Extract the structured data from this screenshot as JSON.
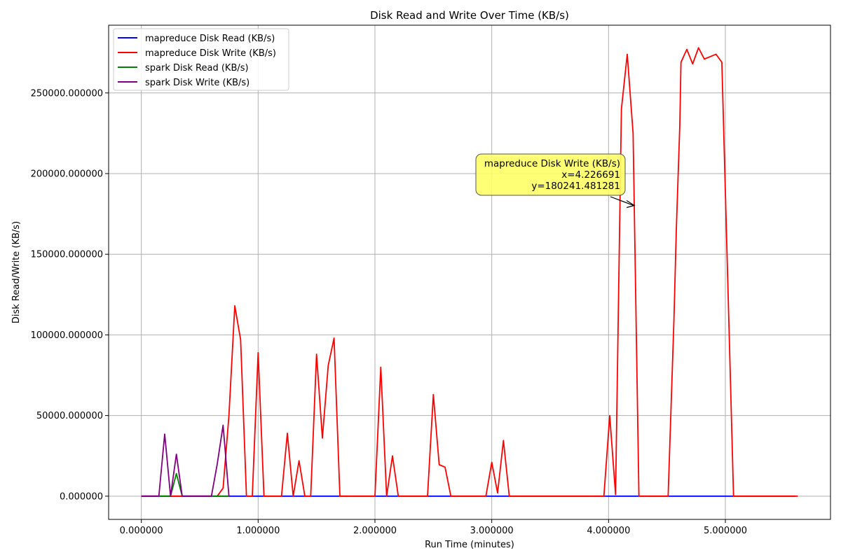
{
  "chart_data": {
    "type": "line",
    "title": "Disk Read and Write Over Time (KB/s)",
    "xlabel": "Run Time (minutes)",
    "ylabel": "Disk Read/Write (KB/s)",
    "xlim": [
      -0.28,
      5.9
    ],
    "ylim": [
      -14400,
      292000
    ],
    "xticks": [
      0,
      1,
      2,
      3,
      4,
      5
    ],
    "xtick_labels": [
      "0.000000",
      "1.000000",
      "2.000000",
      "3.000000",
      "4.000000",
      "5.000000"
    ],
    "yticks": [
      0,
      50000,
      100000,
      150000,
      200000,
      250000
    ],
    "ytick_labels": [
      "0.000000",
      "50000.000000",
      "100000.000000",
      "150000.000000",
      "200000.000000",
      "250000.000000"
    ],
    "grid": true,
    "legend_position": "upper-left",
    "series": [
      {
        "name": "mapreduce Disk Read (KB/s)",
        "color": "#0000ff",
        "points": [
          [
            0,
            0
          ],
          [
            5.6,
            0
          ]
        ]
      },
      {
        "name": "mapreduce Disk Write (KB/s)",
        "color": "#ff0000",
        "points": [
          [
            0,
            0
          ],
          [
            0.6,
            0
          ],
          [
            0.65,
            0
          ],
          [
            0.7,
            5000
          ],
          [
            0.75,
            50000
          ],
          [
            0.8,
            118000
          ],
          [
            0.85,
            97000
          ],
          [
            0.9,
            0
          ],
          [
            0.95,
            0
          ],
          [
            1.0,
            89000
          ],
          [
            1.05,
            0
          ],
          [
            1.2,
            0
          ],
          [
            1.25,
            39000
          ],
          [
            1.3,
            0
          ],
          [
            1.35,
            22000
          ],
          [
            1.4,
            0
          ],
          [
            1.45,
            0
          ],
          [
            1.5,
            88000
          ],
          [
            1.55,
            36000
          ],
          [
            1.6,
            81000
          ],
          [
            1.65,
            98000
          ],
          [
            1.7,
            0
          ],
          [
            2.0,
            0
          ],
          [
            2.05,
            80000
          ],
          [
            2.1,
            0
          ],
          [
            2.15,
            25000
          ],
          [
            2.2,
            0
          ],
          [
            2.45,
            0
          ],
          [
            2.5,
            63000
          ],
          [
            2.55,
            19500
          ],
          [
            2.6,
            18000
          ],
          [
            2.65,
            0
          ],
          [
            2.95,
            0
          ],
          [
            3.0,
            21000
          ],
          [
            3.05,
            2000
          ],
          [
            3.1,
            34500
          ],
          [
            3.15,
            0
          ],
          [
            3.96,
            0
          ],
          [
            4.01,
            50000
          ],
          [
            4.06,
            1000
          ],
          [
            4.11,
            240000
          ],
          [
            4.16,
            274000
          ],
          [
            4.21,
            225000
          ],
          [
            4.26,
            0
          ],
          [
            4.51,
            0
          ],
          [
            4.56,
            110000
          ],
          [
            4.58,
            165000
          ],
          [
            4.61,
            230000
          ],
          [
            4.62,
            269000
          ],
          [
            4.67,
            277000
          ],
          [
            4.72,
            268000
          ],
          [
            4.77,
            278000
          ],
          [
            4.82,
            271000
          ],
          [
            4.92,
            274000
          ],
          [
            4.97,
            269000
          ],
          [
            5.02,
            135000
          ],
          [
            5.07,
            0
          ],
          [
            5.62,
            0
          ]
        ]
      },
      {
        "name": "spark Disk Read (KB/s)",
        "color": "#008000",
        "points": [
          [
            0,
            0
          ],
          [
            0.25,
            0
          ],
          [
            0.3,
            14000
          ],
          [
            0.35,
            0
          ],
          [
            0.6,
            0
          ],
          [
            0.65,
            0
          ],
          [
            0.75,
            0
          ]
        ]
      },
      {
        "name": "spark Disk Write (KB/s)",
        "color": "#800080",
        "points": [
          [
            0,
            0
          ],
          [
            0.15,
            0
          ],
          [
            0.2,
            38500
          ],
          [
            0.25,
            0
          ],
          [
            0.3,
            26000
          ],
          [
            0.35,
            0
          ],
          [
            0.6,
            0
          ],
          [
            0.65,
            20000
          ],
          [
            0.7,
            44000
          ],
          [
            0.75,
            0
          ]
        ]
      }
    ],
    "annotation": {
      "series": "mapreduce Disk Write (KB/s)",
      "lines": [
        "mapreduce Disk Write (KB/s)",
        "x=4.226691",
        "y=180241.481281"
      ],
      "point": [
        4.226691,
        180241.481281
      ],
      "box_color": "#ffff66"
    }
  }
}
